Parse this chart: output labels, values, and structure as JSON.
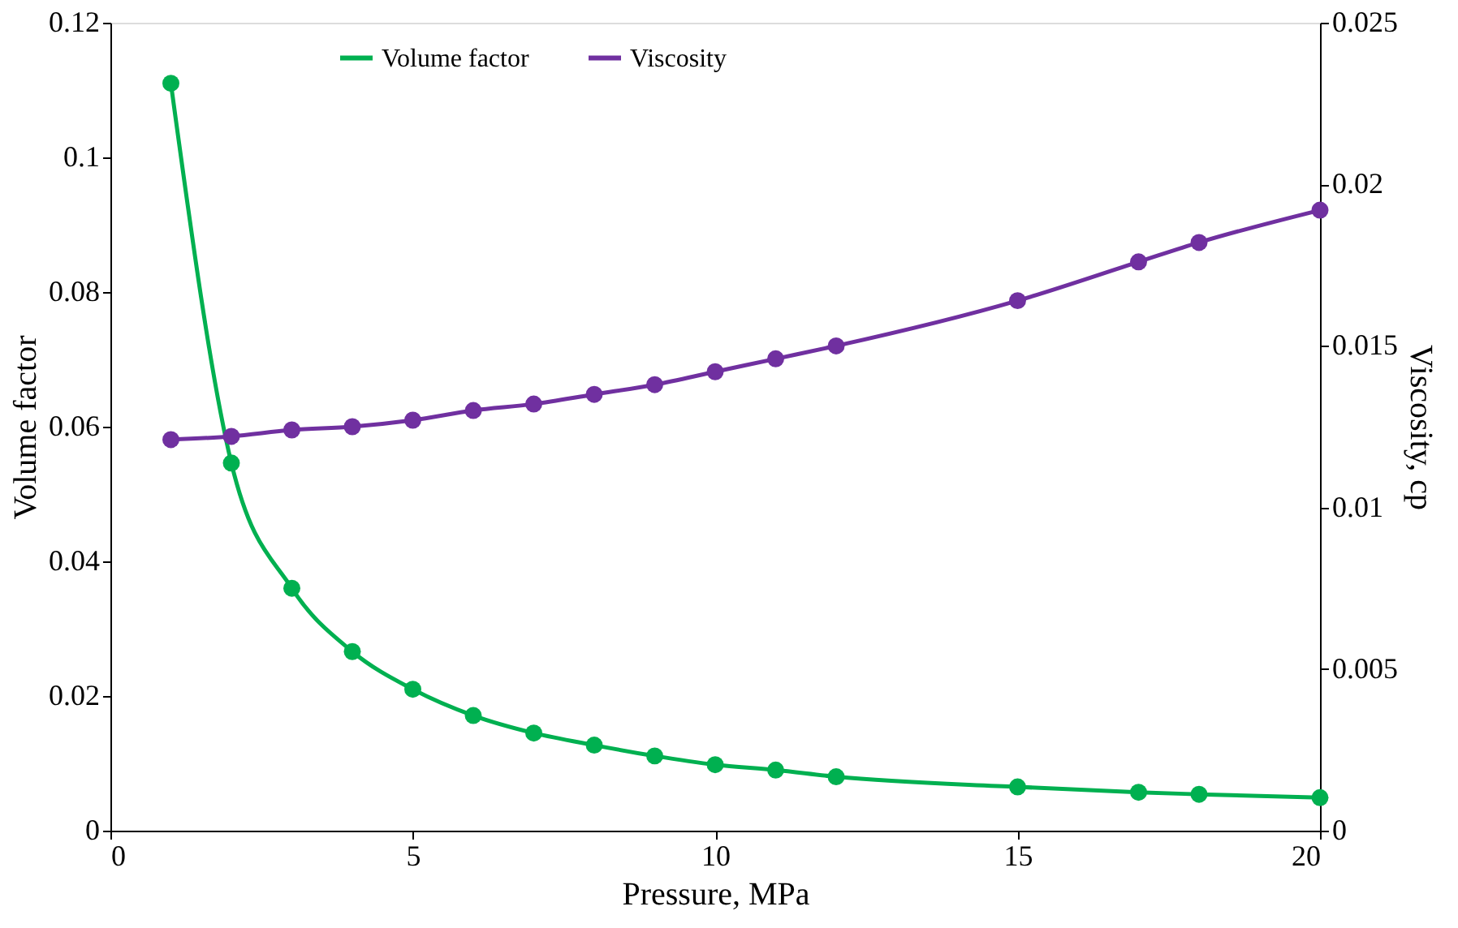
{
  "chart_data": {
    "type": "line",
    "xlabel": "Pressure, MPa",
    "ylabel": "Volume factor",
    "y2label": "Viscosity, cp",
    "x": [
      1,
      2,
      3,
      4,
      5,
      6,
      7,
      8,
      9,
      10,
      11,
      12,
      15,
      17,
      18,
      20
    ],
    "series": [
      {
        "name": "Volume factor",
        "color": "#00b050",
        "values": [
          0.111,
          0.0546,
          0.036,
          0.0266,
          0.021,
          0.0171,
          0.0145,
          0.0127,
          0.0111,
          0.0098,
          0.009,
          0.008,
          0.0065,
          0.0057,
          0.0054,
          0.0049
        ]
      },
      {
        "name": "Viscosity",
        "color": "#7030a0",
        "axis": "y2",
        "values": [
          0.0121,
          0.0122,
          0.0124,
          0.0125,
          0.0127,
          0.013,
          0.0132,
          0.0135,
          0.0138,
          0.0142,
          0.0146,
          0.015,
          0.0164,
          0.0176,
          0.0182,
          0.0192
        ]
      }
    ],
    "xlim": [
      0,
      20
    ],
    "xticks": [
      0,
      5,
      10,
      15,
      20
    ],
    "ylim": [
      0,
      0.12
    ],
    "yticks": [
      0,
      0.02,
      0.04,
      0.06,
      0.08,
      0.1,
      0.12
    ],
    "y2lim": [
      0,
      0.025
    ],
    "y2ticks": [
      0,
      0.005,
      0.01,
      0.015,
      0.02,
      0.025
    ],
    "legend": "top",
    "grid": false,
    "marker": "circle",
    "line_style": "solid"
  }
}
